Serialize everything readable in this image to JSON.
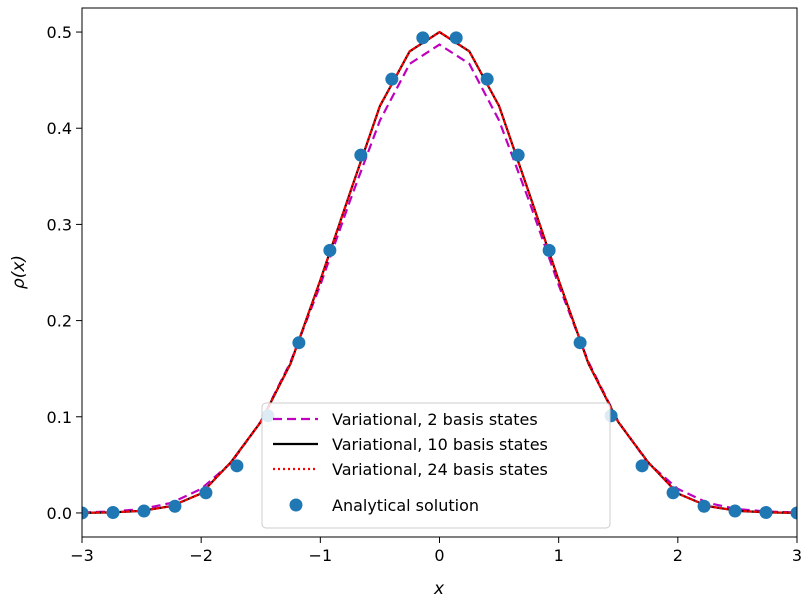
{
  "chart_data": {
    "type": "line",
    "xlabel": "x",
    "ylabel": "ρ(x)",
    "xlim": [
      -3,
      3
    ],
    "ylim": [
      -0.025,
      0.525
    ],
    "xticks": [
      -3,
      -2,
      -1,
      0,
      1,
      2,
      3
    ],
    "xtick_labels": [
      "−3",
      "−2",
      "−1",
      "0",
      "1",
      "2",
      "3"
    ],
    "yticks": [
      0.0,
      0.1,
      0.2,
      0.3,
      0.4,
      0.5
    ],
    "ytick_labels": [
      "0.0",
      "0.1",
      "0.2",
      "0.3",
      "0.4",
      "0.5"
    ],
    "grid": false,
    "legend_position": "bottom-center",
    "series": [
      {
        "name": "Variational, 2 basis states",
        "style": "dashed",
        "color": "#bf00bf",
        "x": [
          -3.0,
          -2.75,
          -2.5,
          -2.25,
          -2.0,
          -1.75,
          -1.5,
          -1.25,
          -1.0,
          -0.75,
          -0.5,
          -0.25,
          0.0,
          0.25,
          0.5,
          0.75,
          1.0,
          1.25,
          1.5,
          1.75,
          2.0,
          2.25,
          2.5,
          2.75,
          3.0
        ],
        "y": [
          0.0005,
          0.0015,
          0.004,
          0.0105,
          0.025,
          0.052,
          0.095,
          0.157,
          0.237,
          0.325,
          0.408,
          0.467,
          0.487,
          0.467,
          0.408,
          0.325,
          0.237,
          0.157,
          0.095,
          0.052,
          0.025,
          0.0105,
          0.004,
          0.0015,
          0.0005
        ]
      },
      {
        "name": "Variational, 10 basis states",
        "style": "solid",
        "color": "#000000",
        "x": [
          -3.0,
          -2.75,
          -2.5,
          -2.25,
          -2.0,
          -1.75,
          -1.5,
          -1.25,
          -1.0,
          -0.75,
          -0.5,
          -0.25,
          0.0,
          0.25,
          0.5,
          0.75,
          1.0,
          1.25,
          1.5,
          1.75,
          2.0,
          2.25,
          2.5,
          2.75,
          3.0
        ],
        "y": [
          0.0001,
          0.0006,
          0.0022,
          0.0071,
          0.0202,
          0.0528,
          0.0946,
          0.1553,
          0.242,
          0.3332,
          0.4231,
          0.48,
          0.5,
          0.48,
          0.4231,
          0.3332,
          0.242,
          0.1553,
          0.0946,
          0.0528,
          0.0202,
          0.0071,
          0.0022,
          0.0006,
          0.0001
        ]
      },
      {
        "name": "Variational, 24 basis states",
        "style": "dotted",
        "color": "#ff0000",
        "x": [
          -3.0,
          -2.75,
          -2.5,
          -2.25,
          -2.0,
          -1.75,
          -1.5,
          -1.25,
          -1.0,
          -0.75,
          -0.5,
          -0.25,
          0.0,
          0.25,
          0.5,
          0.75,
          1.0,
          1.25,
          1.5,
          1.75,
          2.0,
          2.25,
          2.5,
          2.75,
          3.0
        ],
        "y": [
          0.0001,
          0.0006,
          0.0022,
          0.0071,
          0.0202,
          0.0528,
          0.0946,
          0.1553,
          0.242,
          0.3332,
          0.4231,
          0.48,
          0.5,
          0.48,
          0.4231,
          0.3332,
          0.242,
          0.1553,
          0.0946,
          0.0528,
          0.0202,
          0.0071,
          0.0022,
          0.0006,
          0.0001
        ]
      },
      {
        "name": "Analytical solution",
        "style": "markers",
        "color": "#1f77b4",
        "x": [
          -3.0,
          -2.74,
          -2.48,
          -2.22,
          -1.96,
          -1.7,
          -1.44,
          -1.18,
          -0.92,
          -0.66,
          -0.4,
          -0.14,
          0.14,
          0.4,
          0.66,
          0.92,
          1.18,
          1.44,
          1.7,
          1.96,
          2.22,
          2.48,
          2.74,
          3.0
        ],
        "y": [
          0.0,
          0.0005,
          0.002,
          0.007,
          0.021,
          0.049,
          0.101,
          0.177,
          0.273,
          0.372,
          0.451,
          0.494,
          0.494,
          0.451,
          0.372,
          0.273,
          0.177,
          0.101,
          0.049,
          0.021,
          0.007,
          0.002,
          0.0005,
          0.0
        ]
      }
    ]
  }
}
